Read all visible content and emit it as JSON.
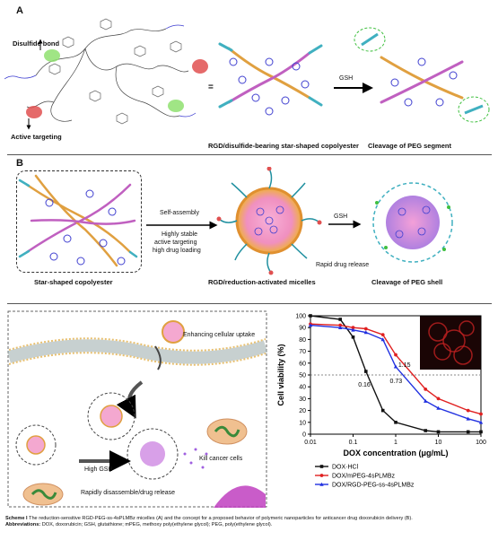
{
  "panel_a": {
    "letter": "A",
    "label_disulfide": "Disulfide bond",
    "label_active_targeting": "Active targeting",
    "equals": "=",
    "arrow_gsh": "GSH",
    "caption_left": "RGD/disulfide-bearing star-shaped copolyester",
    "caption_right": "Cleavage of PEG segment"
  },
  "panel_b": {
    "letter": "B",
    "self_assembly": "Self-assembly",
    "features": [
      "Highly stable",
      "active targeting",
      "high drug loading"
    ],
    "arrow_gsh": "GSH",
    "rapid_release": "Rapid drug release",
    "caption_left": "Star-shaped copolyester",
    "caption_mid": "RGD/reduction-activated micelles",
    "caption_right": "Cleavage of PEG shell"
  },
  "panel_c": {
    "enhancing": "Enhancing cellular uptake",
    "high_gsh": "High GSH",
    "kill": "Kill cancer cells",
    "rapid": "Rapidly disassemble/drug release"
  },
  "chart_data": {
    "type": "line",
    "title": "",
    "xlabel": "DOX concentration (μg/mL)",
    "ylabel": "Cell viability (%)",
    "xscale": "log",
    "xlim": [
      0.01,
      100
    ],
    "ylim": [
      0,
      100
    ],
    "x_ticks": [
      "0.01",
      "0.1",
      "1",
      "10",
      "100"
    ],
    "y_ticks": [
      "0",
      "10",
      "20",
      "30",
      "40",
      "50",
      "60",
      "70",
      "80",
      "90",
      "100"
    ],
    "reference_line_y": 50,
    "annotations": [
      "0.16",
      "0.73",
      "1.15"
    ],
    "legend_position": "bottom",
    "series": [
      {
        "name": "DOX·HCl",
        "color": "#111111",
        "marker": "square",
        "x": [
          0.01,
          0.05,
          0.1,
          0.2,
          0.5,
          1,
          5,
          10,
          50,
          100
        ],
        "y": [
          100,
          97,
          82,
          53,
          20,
          10,
          3,
          2,
          2,
          2
        ]
      },
      {
        "name": "DOX/mPEG-4sPLMBz",
        "color": "#e02020",
        "marker": "circle",
        "x": [
          0.01,
          0.05,
          0.1,
          0.2,
          0.5,
          1,
          5,
          10,
          50,
          100
        ],
        "y": [
          93,
          92,
          90,
          89,
          84,
          67,
          38,
          30,
          20,
          17
        ]
      },
      {
        "name": "DOX/RGD-PEG-ss-4sPLMBz",
        "color": "#2030e0",
        "marker": "triangle",
        "x": [
          0.01,
          0.05,
          0.1,
          0.2,
          0.5,
          1,
          5,
          10,
          50,
          100
        ],
        "y": [
          92,
          90,
          88,
          86,
          80,
          57,
          28,
          22,
          13,
          10
        ]
      }
    ]
  },
  "caption": {
    "scheme_label": "Scheme I",
    "scheme_text": "The reduction-sensitive RGD-PEG-ss-4sPLMBz micelles (A) and the concept for a proposed behavior of polymeric nanoparticles for anticancer drug doxorubicin delivery (B).",
    "abbr_label": "Abbreviations:",
    "abbr_text": "DOX, doxorubicin; GSH, glutathione; mPEG, methoxy poly(ethylene glycol); PEG, poly(ethylene glycol)."
  }
}
